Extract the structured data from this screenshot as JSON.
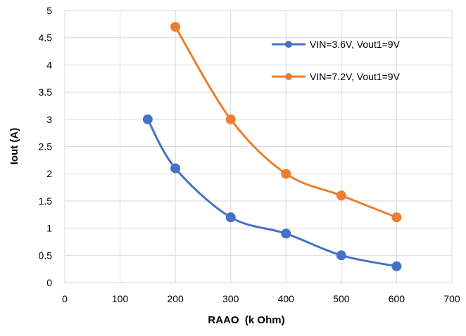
{
  "chart_data": {
    "type": "line",
    "smooth": true,
    "xlabel": "RAAO  (k Ohm)",
    "ylabel": "Iout (A)",
    "xlim": [
      0,
      700
    ],
    "ylim": [
      0,
      5
    ],
    "x_ticks": [
      "0",
      "100",
      "200",
      "300",
      "400",
      "500",
      "600",
      "700"
    ],
    "y_ticks": [
      "0",
      "0.5",
      "1",
      "1.5",
      "2",
      "2.5",
      "3",
      "3.5",
      "4",
      "4.5",
      "5"
    ],
    "grid": true,
    "legend_position": "top-right",
    "series": [
      {
        "name": "VIN=3.6V, Vout1=9V",
        "color": "#4472c4",
        "x": [
          150,
          200,
          300,
          400,
          500,
          600
        ],
        "y": [
          3,
          2.1,
          1.2,
          0.9,
          0.5,
          0.3
        ]
      },
      {
        "name": "VIN=7.2V, Vout1=9V",
        "color": "#ed7d31",
        "x": [
          200,
          300,
          400,
          500,
          600
        ],
        "y": [
          4.7,
          3,
          2,
          1.6,
          1.2
        ]
      }
    ]
  }
}
